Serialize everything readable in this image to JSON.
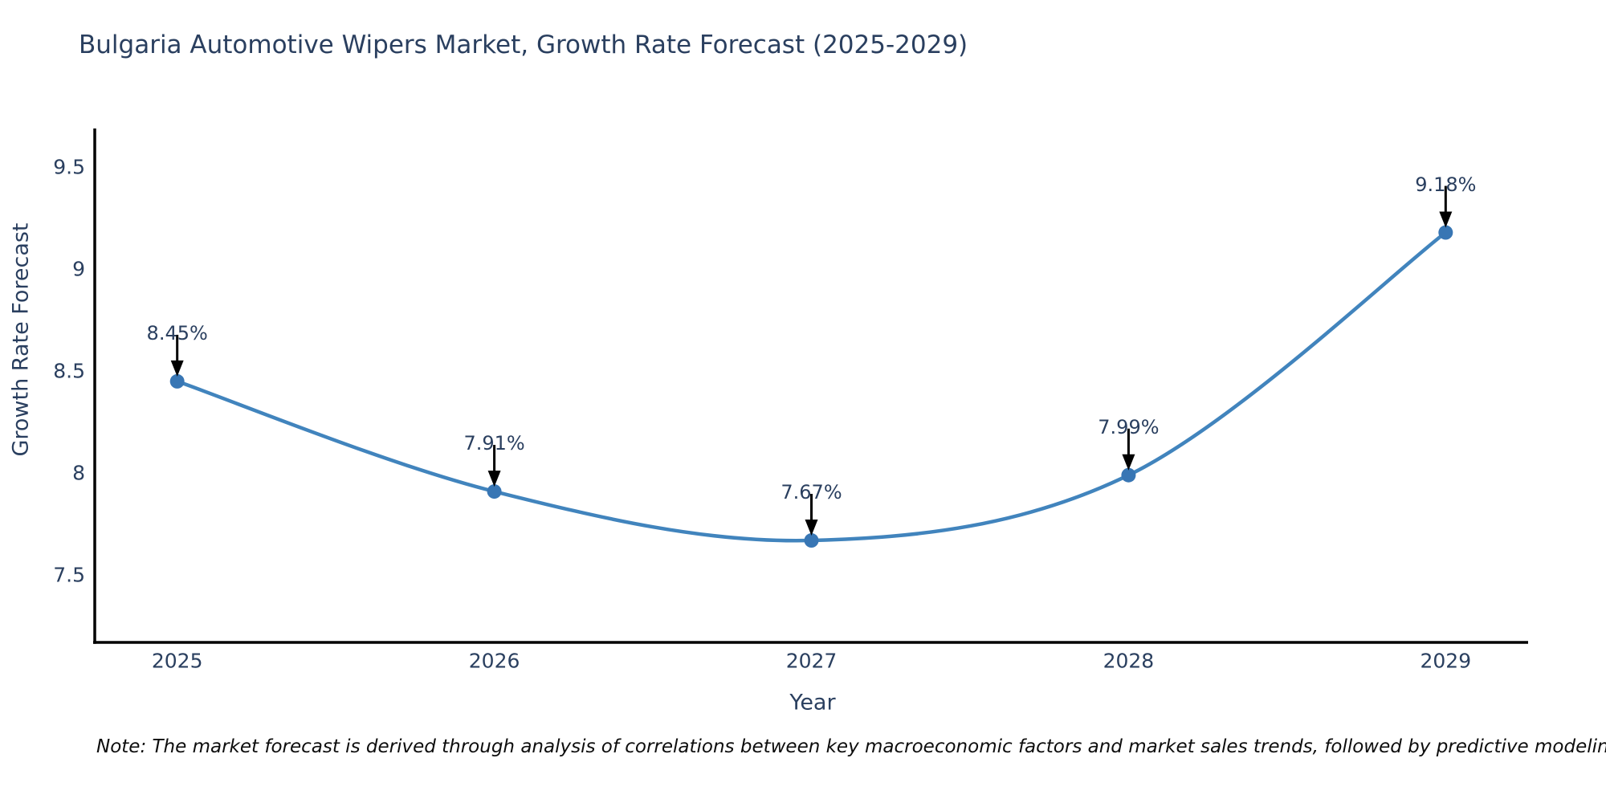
{
  "note": "Note: The market forecast is derived through analysis of correlations between key macroeconomic factors and market sales trends, followed by predictive modeling to project future sales",
  "chart_data": {
    "type": "line",
    "title": "Bulgaria Automotive Wipers Market, Growth Rate Forecast (2025-2029)",
    "xlabel": "Year",
    "ylabel": "Growth Rate Forecast",
    "categories": [
      2025,
      2026,
      2027,
      2028,
      2029
    ],
    "series": [
      {
        "name": "Growth Rate Forecast",
        "values": [
          8.45,
          7.91,
          7.67,
          7.99,
          9.18
        ],
        "point_labels": [
          "8.45%",
          "7.91%",
          "7.67%",
          "7.99%",
          "9.18%"
        ]
      }
    ],
    "y_ticks": [
      9.5,
      9,
      8.5,
      8,
      7.5
    ],
    "y_tick_labels": [
      "9.5",
      "9",
      "8.5",
      "8",
      "7.5"
    ],
    "ylim": [
      7.17,
      9.69
    ],
    "xlim": [
      2024.74,
      2029.26
    ],
    "line_shape": "spline",
    "grid": false,
    "legend_position": "none",
    "colors": {
      "line": "#4184bd",
      "marker": "#3876b4",
      "arrow": "#000000",
      "spine": "#000000",
      "text": "#2a3f5f"
    }
  }
}
